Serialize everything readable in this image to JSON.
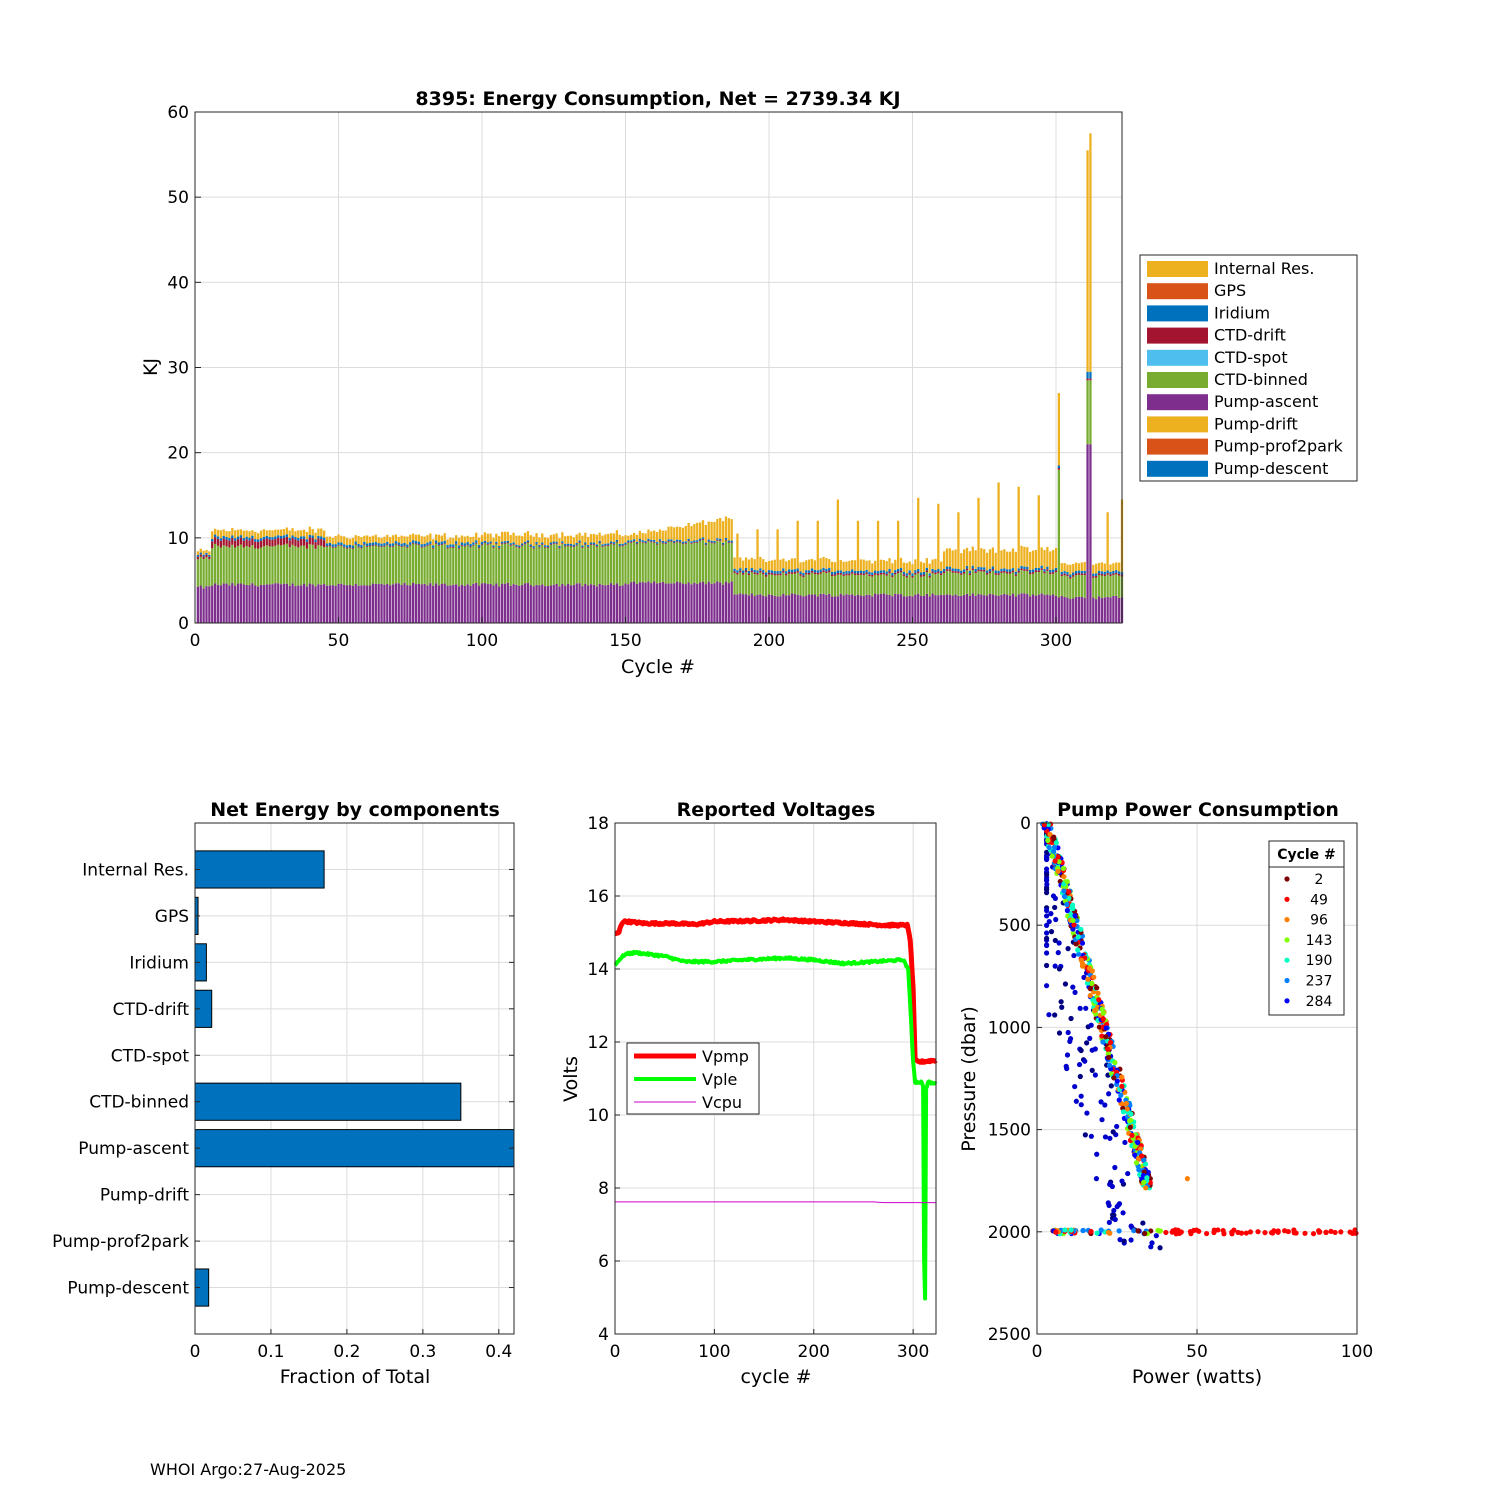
{
  "colors": {
    "internal_res": "#EDB120",
    "gps": "#D95319",
    "iridium": "#0072BD",
    "ctd_drift": "#A2142F",
    "ctd_spot": "#4DBEEE",
    "ctd_binned": "#77AC30",
    "pump_ascent": "#7E2F8E",
    "pump_drift": "#EDB120",
    "pump_prof2park": "#D95319",
    "pump_descent": "#0072BD",
    "hbar": "#0072BD",
    "vpmp": "#FF0000",
    "vple": "#00FF00",
    "vcpu": "#CC00CC"
  },
  "footer": "WHOI Argo:27-Aug-2025",
  "chart_data": [
    {
      "type": "bar",
      "stacked": true,
      "title": "8395: Energy Consumption,  Net = 2739.34 KJ",
      "xlabel": "Cycle #",
      "ylabel": "KJ",
      "xlim": [
        0,
        323
      ],
      "ylim": [
        0,
        60
      ],
      "xticks": [
        0,
        50,
        100,
        150,
        200,
        250,
        300
      ],
      "yticks": [
        0,
        10,
        20,
        30,
        40,
        50,
        60
      ],
      "grid": true,
      "legend_position": "right",
      "series": [
        {
          "name": "Internal Res.",
          "color_key": "internal_res"
        },
        {
          "name": "GPS",
          "color_key": "gps"
        },
        {
          "name": "Iridium",
          "color_key": "iridium"
        },
        {
          "name": "CTD-drift",
          "color_key": "ctd_drift"
        },
        {
          "name": "CTD-spot",
          "color_key": "ctd_spot"
        },
        {
          "name": "CTD-binned",
          "color_key": "ctd_binned"
        },
        {
          "name": "Pump-ascent",
          "color_key": "pump_ascent"
        },
        {
          "name": "Pump-drift",
          "color_key": "pump_drift"
        },
        {
          "name": "Pump-prof2park",
          "color_key": "pump_prof2park"
        },
        {
          "name": "Pump-descent",
          "color_key": "pump_descent"
        }
      ],
      "segments": [
        {
          "from": 1,
          "to": 5,
          "ascent": 4.2,
          "binned": 3.3,
          "drift": 0.3,
          "iridium": 0.2,
          "internal": 0.4
        },
        {
          "from": 6,
          "to": 45,
          "ascent": 4.5,
          "binned": 4.5,
          "drift": 0.8,
          "iridium": 0.3,
          "internal": 0.8
        },
        {
          "from": 46,
          "to": 100,
          "ascent": 4.5,
          "binned": 4.5,
          "drift": 0.1,
          "iridium": 0.3,
          "internal": 0.8
        },
        {
          "from": 101,
          "to": 150,
          "ascent": 4.5,
          "binned": 4.6,
          "drift": 0.1,
          "iridium": 0.2,
          "internal": 1.0
        },
        {
          "from": 151,
          "to": 187,
          "ascent": 4.7,
          "binned": 4.7,
          "drift": 0.1,
          "iridium": 0.2,
          "internal": 2.5
        },
        {
          "from": 188,
          "to": 260,
          "ascent": 3.3,
          "binned": 2.4,
          "drift": 0.2,
          "iridium": 0.3,
          "internal": 1.2
        },
        {
          "from": 261,
          "to": 300,
          "ascent": 3.3,
          "binned": 2.6,
          "drift": 0.2,
          "iridium": 0.3,
          "internal": 2.2
        },
        {
          "from": 301,
          "to": 323,
          "ascent": 3.0,
          "binned": 2.5,
          "drift": 0.2,
          "iridium": 0.3,
          "internal": 1.0
        }
      ],
      "spikes": [
        {
          "cycle": 189,
          "total": 10.5
        },
        {
          "cycle": 196,
          "total": 11.0
        },
        {
          "cycle": 203,
          "total": 11.0
        },
        {
          "cycle": 210,
          "total": 12.0
        },
        {
          "cycle": 217,
          "total": 12.0
        },
        {
          "cycle": 224,
          "total": 14.5
        },
        {
          "cycle": 231,
          "total": 12.0
        },
        {
          "cycle": 238,
          "total": 12.0
        },
        {
          "cycle": 245,
          "total": 12.0
        },
        {
          "cycle": 252,
          "total": 14.7
        },
        {
          "cycle": 259,
          "total": 14.0
        },
        {
          "cycle": 266,
          "total": 13.0
        },
        {
          "cycle": 273,
          "total": 14.7
        },
        {
          "cycle": 280,
          "total": 16.5
        },
        {
          "cycle": 287,
          "total": 16.0
        },
        {
          "cycle": 294,
          "total": 15.0
        },
        {
          "cycle": 301,
          "total": 27.0
        },
        {
          "cycle": 311,
          "total": 55.5
        },
        {
          "cycle": 312,
          "total": 57.5
        },
        {
          "cycle": 318,
          "total": 13.0
        },
        {
          "cycle": 323,
          "total": 14.5
        }
      ]
    },
    {
      "type": "bar",
      "orientation": "horizontal",
      "title": "Net Energy by components",
      "xlabel": "Fraction of Total",
      "xlim": [
        0,
        0.42
      ],
      "xticks": [
        0,
        0.1,
        0.2,
        0.3,
        0.4
      ],
      "xticklabels": [
        "0",
        "0.1",
        "0.2",
        "0.3",
        "0.4"
      ],
      "categories": [
        "Internal Res.",
        "GPS",
        "Iridium",
        "CTD-drift",
        "CTD-spot",
        "CTD-binned",
        "Pump-ascent",
        "Pump-drift",
        "Pump-prof2park",
        "Pump-descent"
      ],
      "values": [
        0.17,
        0.004,
        0.015,
        0.022,
        0.0,
        0.35,
        0.43,
        0.0,
        0.0,
        0.018
      ],
      "grid": true
    },
    {
      "type": "line",
      "title": "Reported Voltages",
      "xlabel": "cycle #",
      "ylabel": "Volts",
      "xlim": [
        0,
        323
      ],
      "ylim": [
        4,
        18
      ],
      "xticks": [
        0,
        100,
        200,
        300
      ],
      "yticks": [
        4,
        6,
        8,
        10,
        12,
        14,
        16,
        18
      ],
      "grid": true,
      "legend_position": "west",
      "series": [
        {
          "name": "Vpmp",
          "color_key": "vpmp",
          "x": [
            0,
            4,
            6,
            8,
            12,
            30,
            60,
            80,
            100,
            140,
            170,
            200,
            240,
            270,
            294,
            297,
            300,
            302,
            305,
            323
          ],
          "y": [
            14.95,
            15.0,
            15.2,
            15.3,
            15.3,
            15.25,
            15.25,
            15.22,
            15.3,
            15.32,
            15.35,
            15.3,
            15.25,
            15.2,
            15.2,
            14.8,
            13.5,
            11.5,
            11.45,
            11.5
          ]
        },
        {
          "name": "Vple",
          "color_key": "vple",
          "x": [
            0,
            4,
            10,
            20,
            50,
            70,
            90,
            100,
            130,
            170,
            200,
            230,
            260,
            290,
            295,
            297,
            300,
            302,
            308,
            310,
            311,
            312,
            313,
            315,
            323
          ],
          "y": [
            14.1,
            14.25,
            14.4,
            14.45,
            14.35,
            14.2,
            14.2,
            14.2,
            14.25,
            14.3,
            14.25,
            14.15,
            14.2,
            14.25,
            14.0,
            13.0,
            11.5,
            10.9,
            10.9,
            10.8,
            6.0,
            5.0,
            10.7,
            10.9,
            10.85
          ]
        },
        {
          "name": "Vcpu",
          "color_key": "vcpu",
          "x": [
            0,
            260,
            270,
            323
          ],
          "y": [
            7.62,
            7.62,
            7.6,
            7.6
          ]
        }
      ]
    },
    {
      "type": "scatter",
      "title": "Pump Power Consumption",
      "xlabel": "Power (watts)",
      "ylabel": "Pressure (dbar)",
      "xlim": [
        0,
        100
      ],
      "ylim": [
        0,
        2500
      ],
      "y_reversed": true,
      "xticks": [
        0,
        50,
        100
      ],
      "yticks": [
        0,
        500,
        1000,
        1500,
        2000,
        2500
      ],
      "grid": true,
      "legend_title": "Cycle #",
      "legend_position": "top-right",
      "legend_entries": [
        {
          "label": "2",
          "color": "#7F0000"
        },
        {
          "label": "49",
          "color": "#FF0000"
        },
        {
          "label": "96",
          "color": "#FF8000"
        },
        {
          "label": "143",
          "color": "#80FF00"
        },
        {
          "label": "190",
          "color": "#00FFC0"
        },
        {
          "label": "237",
          "color": "#0080FF"
        },
        {
          "label": "284",
          "color": "#0000FF"
        }
      ],
      "points_description": "linear ascent band from ~(3,0) to ~(35,1800) colored by cycle, plus cluster along 2000 dbar from 5 to 100 W",
      "band": {
        "x0": 3,
        "p0": 0,
        "x1": 35,
        "p1": 1800
      },
      "bottom_line": {
        "pressure": 2000,
        "x0": 5,
        "x1": 100
      }
    }
  ]
}
